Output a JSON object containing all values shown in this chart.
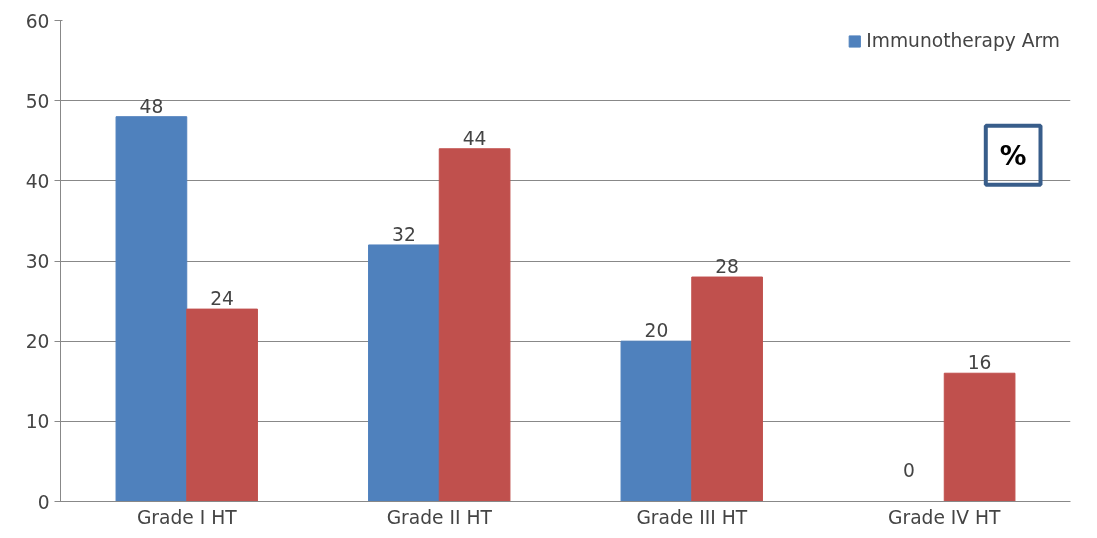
{
  "chart_data": {
    "type": "bar",
    "categories": [
      "Grade I HT",
      "Grade II HT",
      "Grade III HT",
      "Grade IV HT"
    ],
    "series": [
      {
        "name": "Immunotherapy Arm",
        "color": "#4f81bd",
        "values": [
          48,
          32,
          20,
          0
        ]
      },
      {
        "color": "#c0504d",
        "values": [
          24,
          44,
          28,
          16
        ]
      }
    ],
    "ylim": [
      0,
      60
    ],
    "yticks": [
      0,
      10,
      20,
      30,
      40,
      50,
      60
    ],
    "grid": "y",
    "legend": "top right",
    "data_labels": true,
    "annotations": [
      "%"
    ]
  }
}
